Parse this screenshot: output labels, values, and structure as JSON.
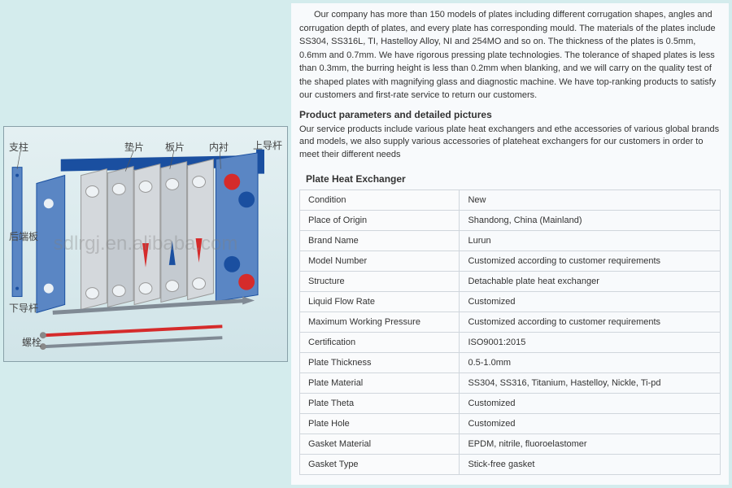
{
  "intro_text": "Our company has more than 150 models of plates including different corrugation shapes, angles and corrugation depth of plates, and every plate has corresponding mould. The materials of the plates include SS304, SS316L, TI, Hastelloy Alloy, NI and 254MO and so on. The thickness of the plates is 0.5mm, 0.6mm and 0.7mm. We have rigorous pressing plate technologies. The tolerance of shaped plates is less than 0.3mm, the burring height is less than 0.2mm when blanking, and we will carry on the quality test of the shaped plates with magnifying glass and diagnostic machine. We have top-ranking products to satisfy our customers and first-rate service to return our customers.",
  "section_title": "Product parameters and detailed pictures",
  "desc_text": "Our service products include various plate heat exchangers and ethe accessories of various global brands and models, we also supply various accessories of plateheat exchangers for our customers in order to meet their different needs",
  "table_title": "Plate Heat Exchanger",
  "table": {
    "rows": [
      [
        "Condition",
        "New"
      ],
      [
        "Place of Origin",
        "Shandong, China (Mainland)"
      ],
      [
        "Brand Name",
        "Lurun"
      ],
      [
        "Model Number",
        "Customized according to customer requirements"
      ],
      [
        "Structure",
        "Detachable plate heat exchanger"
      ],
      [
        "Liquid Flow Rate",
        "Customized"
      ],
      [
        "Maximum Working Pressure",
        "Customized according to customer requirements"
      ],
      [
        "Certification",
        "ISO9001:2015"
      ],
      [
        "Plate Thickness",
        "0.5-1.0mm"
      ],
      [
        "Plate Material",
        "SS304, SS316, Titanium, Hastelloy, Nickle, Ti-pd"
      ],
      [
        "Plate Theta",
        "Customized"
      ],
      [
        "Plate Hole",
        "Customized"
      ],
      [
        "Gasket Material",
        "EPDM, nitrile, fluoroelastomer"
      ],
      [
        "Gasket Type",
        "Stick-free gasket"
      ]
    ]
  },
  "diagram": {
    "labels": {
      "zhizhu": "支柱",
      "houbanban": "后端板",
      "xiadaogan": "下导杆",
      "luoshuan": "螺栓",
      "dianpian": "垫片",
      "banpian": "板片",
      "shangdaogan": "上导杆",
      "neichen": "内衬"
    },
    "colors": {
      "blue_plate": "#1a4fa0",
      "blue_light": "#5a86c4",
      "grey_plate": "#b0b6bc",
      "grey_light": "#d4d8dc",
      "red_arrow": "#d52b2b",
      "red_bolt": "#d52b2b",
      "grey_bolt": "#808a94",
      "label": "#444444"
    }
  },
  "watermark": "sdlrgj.en.alibaba.com"
}
